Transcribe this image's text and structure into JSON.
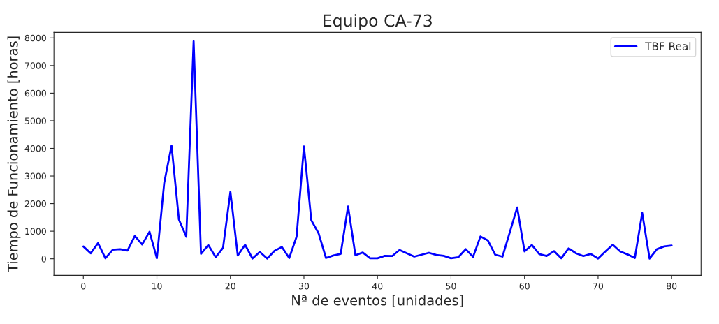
{
  "chart_data": {
    "type": "line",
    "title": "Equipo CA-73",
    "xlabel": "Nª de eventos [unidades]",
    "ylabel": "Tiempo de Funcionamiento [horas]",
    "x": [
      0,
      1,
      2,
      3,
      4,
      5,
      6,
      7,
      8,
      9,
      10,
      11,
      12,
      13,
      14,
      15,
      16,
      17,
      18,
      19,
      20,
      21,
      22,
      23,
      24,
      25,
      26,
      27,
      28,
      29,
      30,
      31,
      32,
      33,
      34,
      35,
      36,
      37,
      38,
      39,
      40,
      41,
      42,
      43,
      44,
      45,
      46,
      47,
      48,
      49,
      50,
      51,
      52,
      53,
      54,
      55,
      56,
      57,
      58,
      59,
      60,
      61,
      62,
      63,
      64,
      65,
      66,
      67,
      68,
      69,
      70,
      71,
      72,
      73,
      74,
      75,
      76,
      77,
      78,
      79,
      80
    ],
    "series": [
      {
        "name": "TBF Real",
        "color": "#0000ff",
        "values": [
          450,
          200,
          570,
          20,
          330,
          350,
          300,
          830,
          520,
          980,
          20,
          2750,
          4100,
          1420,
          800,
          7880,
          180,
          500,
          60,
          400,
          2430,
          120,
          510,
          10,
          250,
          10,
          290,
          430,
          30,
          800,
          4070,
          1400,
          920,
          30,
          120,
          180,
          1900,
          130,
          230,
          20,
          20,
          110,
          100,
          320,
          200,
          80,
          150,
          220,
          140,
          110,
          20,
          60,
          350,
          70,
          810,
          670,
          150,
          80,
          970,
          1860,
          270,
          500,
          170,
          100,
          280,
          20,
          380,
          200,
          100,
          180,
          10,
          270,
          510,
          270,
          160,
          30,
          1660,
          10,
          350,
          450,
          480
        ]
      }
    ],
    "xlim": [
      -4,
      84
    ],
    "xticks": [
      0,
      10,
      20,
      30,
      40,
      50,
      60,
      70,
      80
    ],
    "ylim": [
      -600,
      8200
    ],
    "yticks": [
      0,
      1000,
      2000,
      3000,
      4000,
      5000,
      6000,
      7000,
      8000
    ],
    "legend": "top right",
    "grid": false,
    "line_style": "solid"
  }
}
